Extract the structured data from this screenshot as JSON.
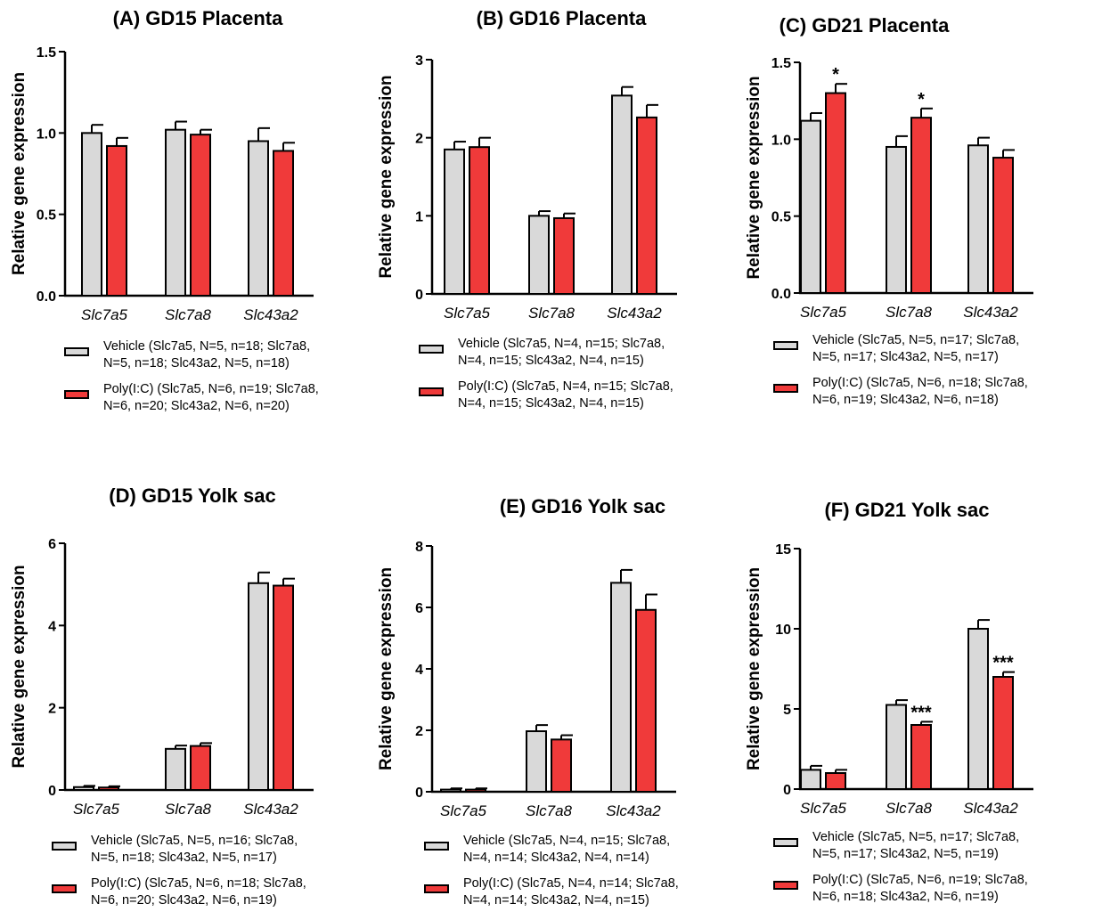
{
  "legend_colors": {
    "vehicle": "#d9d9d9",
    "polyic": "#f03a3a",
    "stroke": "#000000"
  },
  "chart_data": [
    {
      "type": "bar",
      "title": "(A) GD15 Placenta",
      "ylabel": "Relative gene expression",
      "categories": [
        "Slc7a5",
        "Slc7a8",
        "Slc43a2"
      ],
      "ylim": [
        0,
        1.5
      ],
      "yticks": [
        "0.0",
        "0.5",
        "1.0",
        "1.5"
      ],
      "series": [
        {
          "name": "Vehicle",
          "values": [
            1.0,
            1.02,
            0.95
          ],
          "errors": [
            0.05,
            0.05,
            0.08
          ]
        },
        {
          "name": "Poly(I:C)",
          "values": [
            0.92,
            0.99,
            0.89
          ],
          "errors": [
            0.05,
            0.03,
            0.05
          ]
        }
      ],
      "annotations": [],
      "legend": {
        "vehicle": "Vehicle (Slc7a5, N=5, n=18; Slc7a8,\nN=5, n=18; Slc43a2, N=5, n=18)",
        "polyic": "Poly(I:C) (Slc7a5, N=6, n=19; Slc7a8,\nN=6, n=20; Slc43a2, N=6, n=20)"
      }
    },
    {
      "type": "bar",
      "title": "(B) GD16 Placenta",
      "ylabel": "Relative gene expression",
      "categories": [
        "Slc7a5",
        "Slc7a8",
        "Slc43a2"
      ],
      "ylim": [
        0,
        3
      ],
      "yticks": [
        "0",
        "1",
        "2",
        "3"
      ],
      "series": [
        {
          "name": "Vehicle",
          "values": [
            1.85,
            1.0,
            2.54
          ],
          "errors": [
            0.1,
            0.06,
            0.11
          ]
        },
        {
          "name": "Poly(I:C)",
          "values": [
            1.88,
            0.97,
            2.26
          ],
          "errors": [
            0.12,
            0.06,
            0.16
          ]
        }
      ],
      "annotations": [],
      "legend": {
        "vehicle": "Vehicle (Slc7a5, N=4, n=15; Slc7a8,\nN=4, n=15; Slc43a2, N=4, n=15)",
        "polyic": "Poly(I:C) (Slc7a5, N=4, n=15; Slc7a8,\nN=4, n=15; Slc43a2, N=4, n=15)"
      }
    },
    {
      "type": "bar",
      "title": "(C) GD21 Placenta",
      "ylabel": "Relative gene expression",
      "categories": [
        "Slc7a5",
        "Slc7a8",
        "Slc43a2"
      ],
      "ylim": [
        0,
        1.5
      ],
      "yticks": [
        "0.0",
        "0.5",
        "1.0",
        "1.5"
      ],
      "series": [
        {
          "name": "Vehicle",
          "values": [
            1.12,
            0.95,
            0.96
          ],
          "errors": [
            0.05,
            0.07,
            0.05
          ]
        },
        {
          "name": "Poly(I:C)",
          "values": [
            1.3,
            1.14,
            0.88
          ],
          "errors": [
            0.06,
            0.06,
            0.05
          ]
        }
      ],
      "annotations": [
        {
          "category": 0,
          "series": 1,
          "text": "*"
        },
        {
          "category": 1,
          "series": 1,
          "text": "*"
        }
      ],
      "legend": {
        "vehicle": "Vehicle (Slc7a5, N=5, n=17; Slc7a8,\nN=5, n=17; Slc43a2, N=5, n=17)",
        "polyic": "Poly(I:C) (Slc7a5, N=6, n=18; Slc7a8,\nN=6, n=19; Slc43a2, N=6, n=18)"
      }
    },
    {
      "type": "bar",
      "title": "(D) GD15 Yolk sac",
      "ylabel": "Relative gene expression",
      "categories": [
        "Slc7a5",
        "Slc7a8",
        "Slc43a2"
      ],
      "ylim": [
        0,
        6
      ],
      "yticks": [
        "0",
        "2",
        "4",
        "6"
      ],
      "series": [
        {
          "name": "Vehicle",
          "values": [
            0.07,
            1.0,
            5.03
          ],
          "errors": [
            0.03,
            0.08,
            0.26
          ]
        },
        {
          "name": "Poly(I:C)",
          "values": [
            0.06,
            1.07,
            4.97
          ],
          "errors": [
            0.03,
            0.07,
            0.17
          ]
        }
      ],
      "annotations": [],
      "legend": {
        "vehicle": "Vehicle (Slc7a5, N=5, n=16; Slc7a8,\nN=5, n=18; Slc43a2, N=5, n=17)",
        "polyic": "Poly(I:C) (Slc7a5, N=6, n=18; Slc7a8,\nN=6, n=20; Slc43a2, N=6, n=19)"
      }
    },
    {
      "type": "bar",
      "title": "(E) GD16 Yolk sac",
      "ylabel": "Relative gene expression",
      "categories": [
        "Slc7a5",
        "Slc7a8",
        "Slc43a2"
      ],
      "ylim": [
        0,
        8
      ],
      "yticks": [
        "0",
        "2",
        "4",
        "6",
        "8"
      ],
      "series": [
        {
          "name": "Vehicle",
          "values": [
            0.07,
            1.97,
            6.8
          ],
          "errors": [
            0.04,
            0.2,
            0.42
          ]
        },
        {
          "name": "Poly(I:C)",
          "values": [
            0.07,
            1.7,
            5.92
          ],
          "errors": [
            0.04,
            0.14,
            0.5
          ]
        }
      ],
      "annotations": [],
      "legend": {
        "vehicle": "Vehicle (Slc7a5, N=4, n=15; Slc7a8,\nN=4, n=14; Slc43a2, N=4, n=14)",
        "polyic": "Poly(I:C) (Slc7a5, N=4, n=14; Slc7a8,\nN=4, n=14;  Slc43a2, N=4, n=15)"
      }
    },
    {
      "type": "bar",
      "title": "(F) GD21 Yolk sac",
      "ylabel": "Relative gene expression",
      "categories": [
        "Slc7a5",
        "Slc7a8",
        "Slc43a2"
      ],
      "ylim": [
        0,
        15
      ],
      "yticks": [
        "0",
        "5",
        "10",
        "15"
      ],
      "series": [
        {
          "name": "Vehicle",
          "values": [
            1.2,
            5.25,
            10.0
          ],
          "errors": [
            0.25,
            0.3,
            0.55
          ]
        },
        {
          "name": "Poly(I:C)",
          "values": [
            1.0,
            4.0,
            7.0
          ],
          "errors": [
            0.2,
            0.2,
            0.3
          ]
        }
      ],
      "annotations": [
        {
          "category": 1,
          "series": 1,
          "text": "***"
        },
        {
          "category": 2,
          "series": 1,
          "text": "***"
        }
      ],
      "legend": {
        "vehicle": "Vehicle (Slc7a5, N=5, n=17; Slc7a8,\nN=5, n=17; Slc43a2, N=5, n=19)",
        "polyic": "Poly(I:C) (Slc7a5, N=6, n=19; Slc7a8,\nN=6, n=18; Slc43a2, N=6, n=19)"
      }
    }
  ]
}
